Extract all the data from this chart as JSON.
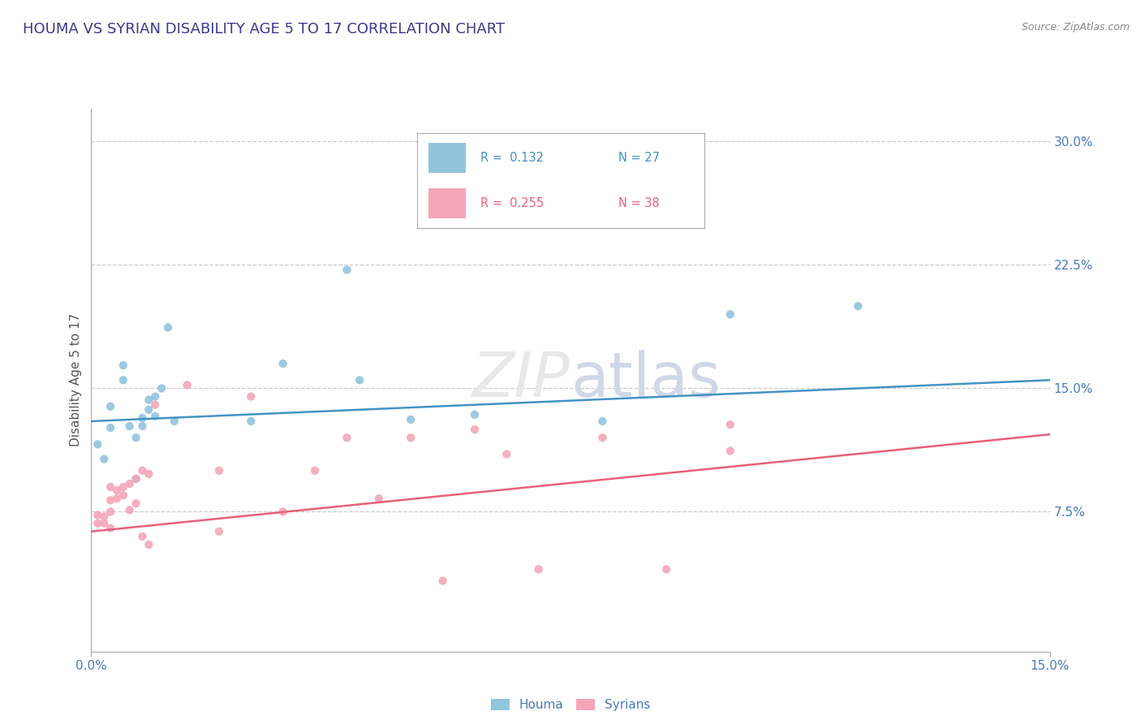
{
  "title": "HOUMA VS SYRIAN DISABILITY AGE 5 TO 17 CORRELATION CHART",
  "source": "Source: ZipAtlas.com",
  "ylabel": "Disability Age 5 to 17",
  "y_tick_labels": [
    "7.5%",
    "15.0%",
    "22.5%",
    "30.0%"
  ],
  "y_tick_positions": [
    0.075,
    0.15,
    0.225,
    0.3
  ],
  "xlim": [
    0.0,
    0.15
  ],
  "ylim": [
    -0.01,
    0.32
  ],
  "legend_r1": "R =  0.132",
  "legend_n1": "N = 27",
  "legend_r2": "R =  0.255",
  "legend_n2": "N = 38",
  "houma_color": "#92c5de",
  "syrian_color": "#f4a6b8",
  "houma_line_color": "#4393c3",
  "syrian_line_color": "#e8607a",
  "title_color": "#3a3a8c",
  "axis_label_color": "#555555",
  "tick_label_color": "#4a7abf",
  "source_color": "#888888",
  "watermark_text": "ZIP",
  "watermark_text2": "atlas",
  "houma_points": [
    [
      0.001,
      0.116
    ],
    [
      0.002,
      0.107
    ],
    [
      0.003,
      0.126
    ],
    [
      0.003,
      0.139
    ],
    [
      0.005,
      0.155
    ],
    [
      0.005,
      0.164
    ],
    [
      0.006,
      0.127
    ],
    [
      0.007,
      0.12
    ],
    [
      0.007,
      0.095
    ],
    [
      0.008,
      0.132
    ],
    [
      0.008,
      0.127
    ],
    [
      0.009,
      0.137
    ],
    [
      0.009,
      0.143
    ],
    [
      0.01,
      0.133
    ],
    [
      0.01,
      0.145
    ],
    [
      0.011,
      0.15
    ],
    [
      0.012,
      0.187
    ],
    [
      0.013,
      0.13
    ],
    [
      0.025,
      0.13
    ],
    [
      0.03,
      0.165
    ],
    [
      0.04,
      0.222
    ],
    [
      0.042,
      0.155
    ],
    [
      0.05,
      0.131
    ],
    [
      0.06,
      0.134
    ],
    [
      0.08,
      0.13
    ],
    [
      0.1,
      0.195
    ],
    [
      0.12,
      0.2
    ]
  ],
  "syrian_points": [
    [
      0.001,
      0.073
    ],
    [
      0.001,
      0.068
    ],
    [
      0.002,
      0.072
    ],
    [
      0.002,
      0.068
    ],
    [
      0.003,
      0.09
    ],
    [
      0.003,
      0.082
    ],
    [
      0.003,
      0.075
    ],
    [
      0.003,
      0.065
    ],
    [
      0.004,
      0.088
    ],
    [
      0.004,
      0.083
    ],
    [
      0.005,
      0.09
    ],
    [
      0.005,
      0.085
    ],
    [
      0.006,
      0.092
    ],
    [
      0.006,
      0.076
    ],
    [
      0.007,
      0.095
    ],
    [
      0.007,
      0.08
    ],
    [
      0.008,
      0.1
    ],
    [
      0.008,
      0.06
    ],
    [
      0.009,
      0.098
    ],
    [
      0.009,
      0.055
    ],
    [
      0.01,
      0.14
    ],
    [
      0.015,
      0.152
    ],
    [
      0.02,
      0.1
    ],
    [
      0.02,
      0.063
    ],
    [
      0.025,
      0.145
    ],
    [
      0.03,
      0.075
    ],
    [
      0.035,
      0.1
    ],
    [
      0.04,
      0.12
    ],
    [
      0.045,
      0.083
    ],
    [
      0.05,
      0.12
    ],
    [
      0.055,
      0.033
    ],
    [
      0.06,
      0.125
    ],
    [
      0.065,
      0.11
    ],
    [
      0.07,
      0.04
    ],
    [
      0.08,
      0.12
    ],
    [
      0.09,
      0.04
    ],
    [
      0.1,
      0.128
    ],
    [
      0.1,
      0.112
    ]
  ],
  "houma_regression": [
    0.0,
    0.15,
    0.13,
    0.155
  ],
  "syrian_regression": [
    0.0,
    0.15,
    0.063,
    0.122
  ]
}
